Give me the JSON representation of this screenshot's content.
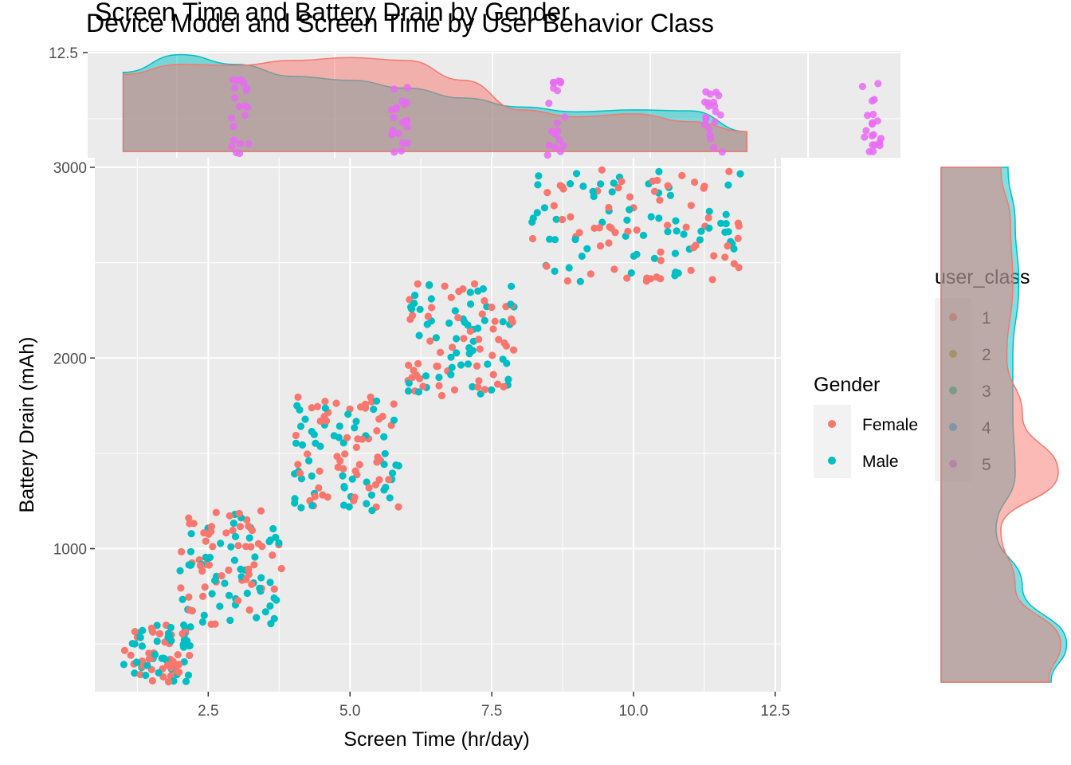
{
  "titles": {
    "title_a": "Screen Time and Battery Drain by Gender",
    "title_b": "Device Model and Screen Time by User Behavior Class"
  },
  "colors": {
    "panel_bg": "#EBEBEB",
    "grid": "#FFFFFF",
    "female": "#F8766D",
    "male": "#00BFC4",
    "class_1": "#F8766D",
    "class_2": "#A3A500",
    "class_3": "#00BF7D",
    "class_4": "#00B0F6",
    "class_5": "#E76BF3"
  },
  "chart_data": [
    {
      "type": "scatter",
      "title": "Screen Time and Battery Drain by Gender",
      "xlabel": "Screen Time (hr/day)",
      "ylabel": "Battery Drain (mAh)",
      "xlim": [
        0.5,
        12.6
      ],
      "ylim": [
        250,
        3050
      ],
      "x_ticks": [
        "2.5",
        "5.0",
        "7.5",
        "10.0",
        "12.5"
      ],
      "y_ticks": [
        "1000",
        "2000",
        "3000"
      ],
      "grid": true,
      "legend": {
        "title": "Gender",
        "position": "right",
        "entries": [
          "Female",
          "Male"
        ]
      },
      "series": [
        {
          "name": "Female",
          "color": "#F8766D",
          "clusters": [
            {
              "x_range": [
                1.0,
                2.2
              ],
              "y_range": [
                300,
                600
              ],
              "n": 40
            },
            {
              "x_range": [
                2.0,
                3.8
              ],
              "y_range": [
                600,
                1200
              ],
              "n": 55
            },
            {
              "x_range": [
                4.0,
                5.9
              ],
              "y_range": [
                1200,
                1800
              ],
              "n": 55
            },
            {
              "x_range": [
                6.0,
                7.9
              ],
              "y_range": [
                1800,
                2400
              ],
              "n": 55
            },
            {
              "x_range": [
                8.2,
                12.0
              ],
              "y_range": [
                2400,
                3000
              ],
              "n": 65
            }
          ]
        },
        {
          "name": "Male",
          "color": "#00BFC4",
          "clusters": [
            {
              "x_range": [
                1.0,
                2.2
              ],
              "y_range": [
                300,
                600
              ],
              "n": 45
            },
            {
              "x_range": [
                2.0,
                3.8
              ],
              "y_range": [
                600,
                1200
              ],
              "n": 55
            },
            {
              "x_range": [
                4.0,
                5.9
              ],
              "y_range": [
                1200,
                1800
              ],
              "n": 55
            },
            {
              "x_range": [
                6.0,
                7.9
              ],
              "y_range": [
                1800,
                2400
              ],
              "n": 55
            },
            {
              "x_range": [
                8.2,
                12.0
              ],
              "y_range": [
                2400,
                3000
              ],
              "n": 65
            }
          ]
        }
      ]
    },
    {
      "type": "area",
      "role": "top marginal density of screen time by gender",
      "x_ticks": [
        "12.5"
      ],
      "series": [
        {
          "name": "Female",
          "x": [
            1.0,
            2.0,
            3.0,
            4.0,
            5.0,
            6.0,
            7.0,
            8.0,
            9.0,
            10.0,
            11.0,
            12.0
          ],
          "density": [
            0.78,
            0.88,
            0.87,
            0.92,
            0.95,
            0.92,
            0.72,
            0.42,
            0.35,
            0.38,
            0.3,
            0.2
          ]
        },
        {
          "name": "Male",
          "x": [
            1.0,
            2.0,
            3.0,
            4.0,
            5.0,
            6.0,
            7.0,
            8.0,
            9.0,
            10.0,
            11.0,
            12.0
          ],
          "density": [
            0.8,
            0.98,
            0.88,
            0.76,
            0.72,
            0.64,
            0.54,
            0.45,
            0.4,
            0.42,
            0.41,
            0.2
          ]
        }
      ]
    },
    {
      "type": "area",
      "role": "right marginal density of battery drain by gender",
      "series": [
        {
          "name": "Female",
          "y": [
            300,
            500,
            800,
            1100,
            1400,
            1700,
            2000,
            2400,
            2700,
            3000
          ],
          "density": [
            0.9,
            1.0,
            0.62,
            0.5,
            0.98,
            0.68,
            0.55,
            0.6,
            0.58,
            0.5
          ]
        },
        {
          "name": "Male",
          "y": [
            300,
            500,
            800,
            1100,
            1400,
            1700,
            2000,
            2400,
            2700,
            3000
          ],
          "density": [
            0.92,
            1.05,
            0.68,
            0.46,
            0.62,
            0.6,
            0.6,
            0.65,
            0.62,
            0.56
          ]
        }
      ]
    },
    {
      "type": "scatter",
      "title": "Device Model and Screen Time by User Behavior Class",
      "role": "overlaid dot-strip layer",
      "legend": {
        "title": "user_class",
        "position": "right",
        "entries": [
          "1",
          "2",
          "3",
          "4",
          "5"
        ]
      },
      "series": [
        {
          "name": "5",
          "color": "#E76BF3",
          "columns": [
            3.0,
            5.8,
            8.6,
            11.4,
            14.2
          ]
        }
      ]
    }
  ]
}
